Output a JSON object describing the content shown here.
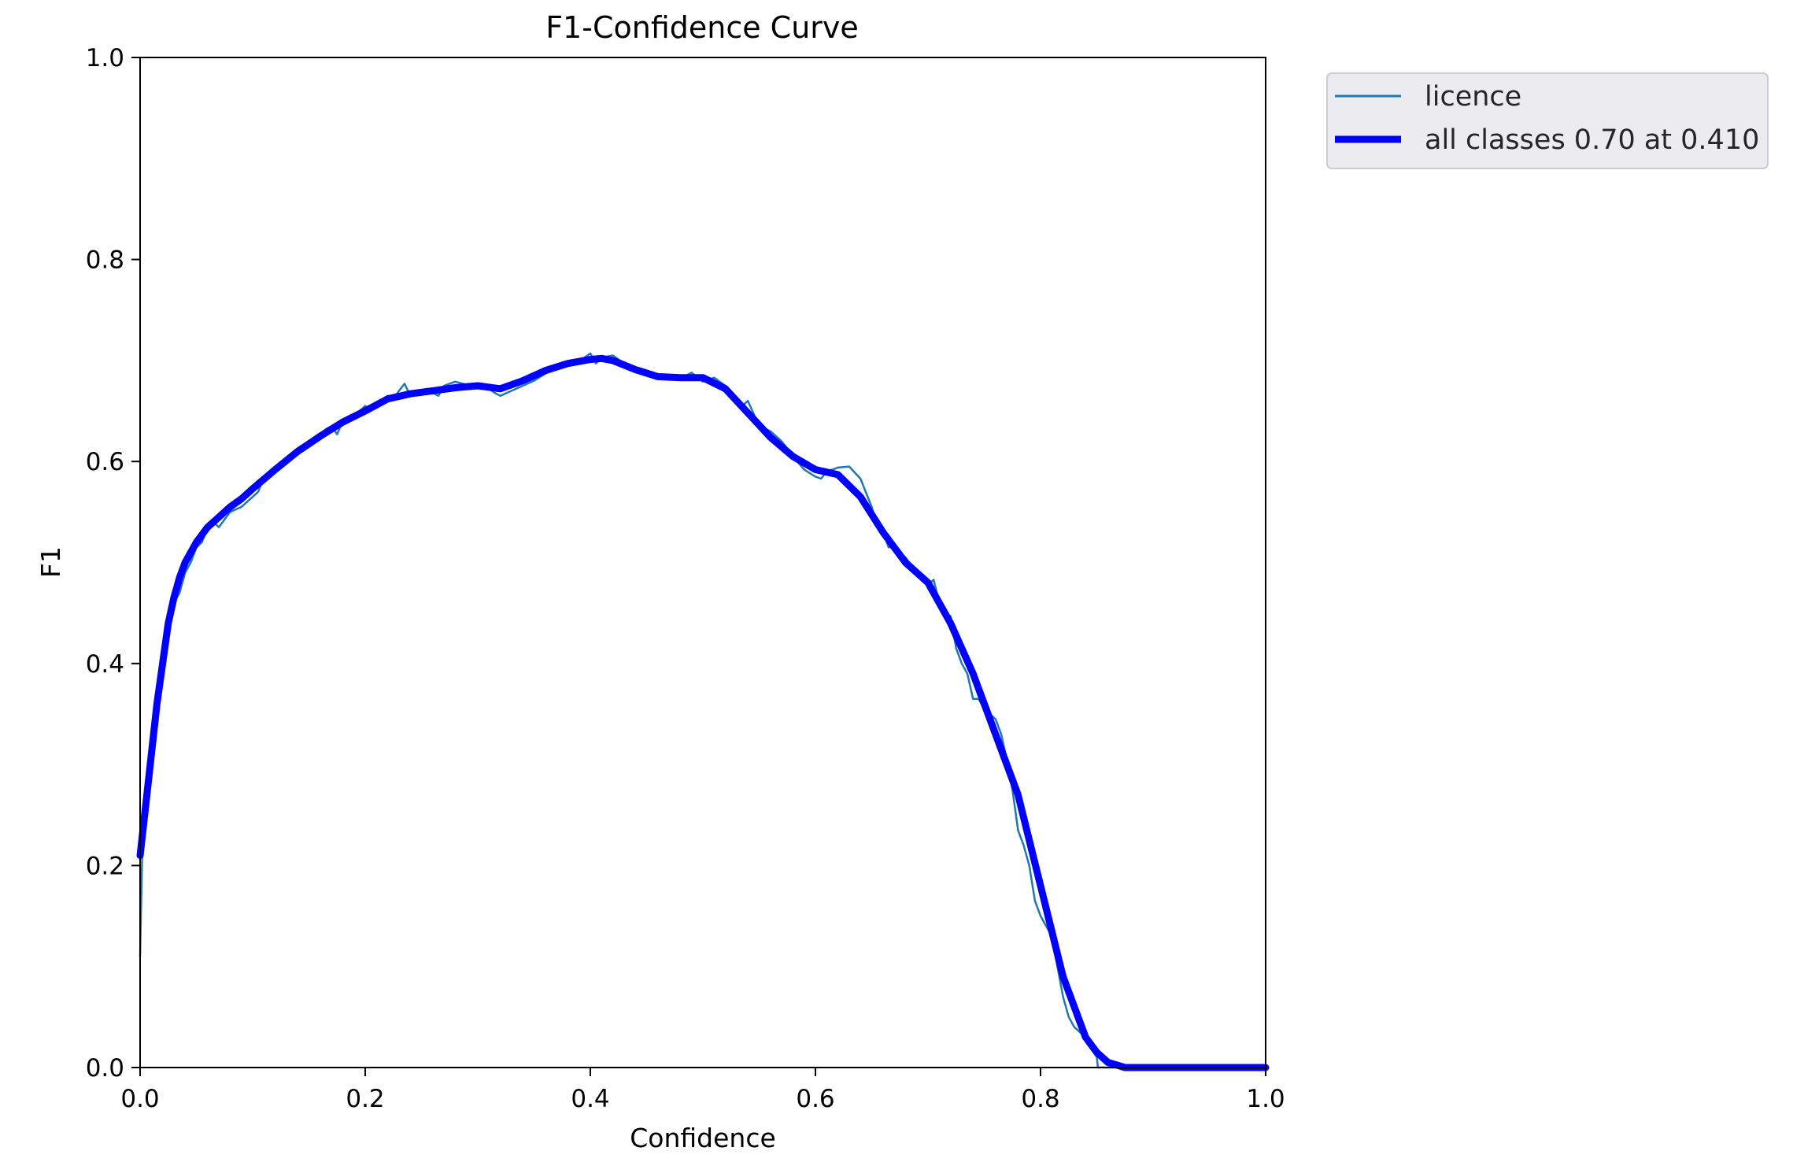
{
  "chart_data": {
    "type": "line",
    "title": "F1-Confidence Curve",
    "xlabel": "Confidence",
    "ylabel": "F1",
    "xlim": [
      0,
      1
    ],
    "ylim": [
      0,
      1
    ],
    "xticks": [
      "0.0",
      "0.2",
      "0.4",
      "0.6",
      "0.8",
      "1.0"
    ],
    "yticks": [
      "0.0",
      "0.2",
      "0.4",
      "0.6",
      "0.8",
      "1.0"
    ],
    "grid": false,
    "legend_position": "outside-top-right",
    "series": [
      {
        "name": "licence",
        "color": "#1f77b4",
        "x": [
          0.0,
          0.002,
          0.005,
          0.01,
          0.015,
          0.02,
          0.025,
          0.03,
          0.035,
          0.04,
          0.045,
          0.05,
          0.055,
          0.06,
          0.065,
          0.07,
          0.08,
          0.09,
          0.1,
          0.105,
          0.11,
          0.12,
          0.13,
          0.14,
          0.15,
          0.16,
          0.165,
          0.17,
          0.175,
          0.18,
          0.19,
          0.2,
          0.205,
          0.21,
          0.22,
          0.225,
          0.23,
          0.235,
          0.24,
          0.25,
          0.255,
          0.26,
          0.265,
          0.27,
          0.28,
          0.29,
          0.3,
          0.31,
          0.315,
          0.32,
          0.33,
          0.34,
          0.35,
          0.36,
          0.37,
          0.38,
          0.39,
          0.4,
          0.405,
          0.41,
          0.42,
          0.43,
          0.44,
          0.45,
          0.46,
          0.47,
          0.48,
          0.49,
          0.5,
          0.51,
          0.52,
          0.53,
          0.535,
          0.54,
          0.55,
          0.56,
          0.57,
          0.58,
          0.59,
          0.6,
          0.605,
          0.61,
          0.62,
          0.63,
          0.64,
          0.65,
          0.655,
          0.66,
          0.665,
          0.67,
          0.68,
          0.69,
          0.7,
          0.705,
          0.71,
          0.715,
          0.72,
          0.725,
          0.73,
          0.735,
          0.74,
          0.745,
          0.75,
          0.755,
          0.76,
          0.765,
          0.77,
          0.775,
          0.78,
          0.785,
          0.79,
          0.795,
          0.8,
          0.805,
          0.81,
          0.815,
          0.82,
          0.825,
          0.83,
          0.835,
          0.84,
          0.845,
          0.85,
          0.851,
          0.86,
          0.87,
          0.88,
          0.9,
          0.95,
          1.0
        ],
        "y": [
          0.11,
          0.22,
          0.27,
          0.33,
          0.37,
          0.41,
          0.44,
          0.46,
          0.47,
          0.49,
          0.5,
          0.515,
          0.52,
          0.535,
          0.54,
          0.535,
          0.55,
          0.555,
          0.565,
          0.57,
          0.585,
          0.59,
          0.6,
          0.61,
          0.62,
          0.625,
          0.632,
          0.635,
          0.627,
          0.64,
          0.645,
          0.655,
          0.65,
          0.658,
          0.665,
          0.662,
          0.67,
          0.677,
          0.665,
          0.67,
          0.672,
          0.668,
          0.665,
          0.675,
          0.679,
          0.676,
          0.675,
          0.672,
          0.668,
          0.665,
          0.67,
          0.675,
          0.68,
          0.687,
          0.693,
          0.697,
          0.699,
          0.707,
          0.697,
          0.703,
          0.705,
          0.697,
          0.69,
          0.686,
          0.682,
          0.683,
          0.682,
          0.688,
          0.679,
          0.683,
          0.675,
          0.662,
          0.655,
          0.66,
          0.635,
          0.63,
          0.62,
          0.605,
          0.592,
          0.585,
          0.583,
          0.59,
          0.594,
          0.595,
          0.583,
          0.555,
          0.535,
          0.53,
          0.515,
          0.515,
          0.505,
          0.49,
          0.478,
          0.483,
          0.46,
          0.445,
          0.447,
          0.415,
          0.4,
          0.39,
          0.365,
          0.365,
          0.355,
          0.35,
          0.345,
          0.33,
          0.305,
          0.275,
          0.235,
          0.22,
          0.2,
          0.165,
          0.15,
          0.14,
          0.13,
          0.1,
          0.07,
          0.05,
          0.04,
          0.035,
          0.03,
          0.02,
          0.01,
          0.0,
          0.0,
          0.0,
          0.0,
          0.0,
          0.0,
          0.0
        ]
      },
      {
        "name": "all classes 0.70 at 0.410",
        "color": "#0000ff",
        "x": [
          0.0,
          0.005,
          0.01,
          0.015,
          0.02,
          0.025,
          0.03,
          0.035,
          0.04,
          0.05,
          0.06,
          0.07,
          0.08,
          0.09,
          0.1,
          0.12,
          0.14,
          0.16,
          0.18,
          0.2,
          0.22,
          0.24,
          0.26,
          0.28,
          0.3,
          0.32,
          0.34,
          0.36,
          0.38,
          0.4,
          0.41,
          0.42,
          0.44,
          0.46,
          0.48,
          0.5,
          0.52,
          0.54,
          0.56,
          0.58,
          0.6,
          0.62,
          0.64,
          0.66,
          0.68,
          0.7,
          0.72,
          0.74,
          0.76,
          0.78,
          0.8,
          0.82,
          0.84,
          0.85,
          0.86,
          0.875,
          0.9,
          0.95,
          1.0
        ],
        "y": [
          0.21,
          0.26,
          0.31,
          0.36,
          0.4,
          0.44,
          0.465,
          0.485,
          0.5,
          0.52,
          0.535,
          0.545,
          0.555,
          0.563,
          0.573,
          0.592,
          0.61,
          0.625,
          0.639,
          0.65,
          0.662,
          0.667,
          0.67,
          0.673,
          0.675,
          0.672,
          0.68,
          0.69,
          0.697,
          0.701,
          0.702,
          0.7,
          0.691,
          0.684,
          0.683,
          0.683,
          0.672,
          0.648,
          0.624,
          0.605,
          0.592,
          0.587,
          0.565,
          0.53,
          0.5,
          0.48,
          0.44,
          0.39,
          0.33,
          0.27,
          0.18,
          0.09,
          0.03,
          0.015,
          0.005,
          0.0,
          0.0,
          0.0,
          0.0
        ]
      }
    ]
  }
}
